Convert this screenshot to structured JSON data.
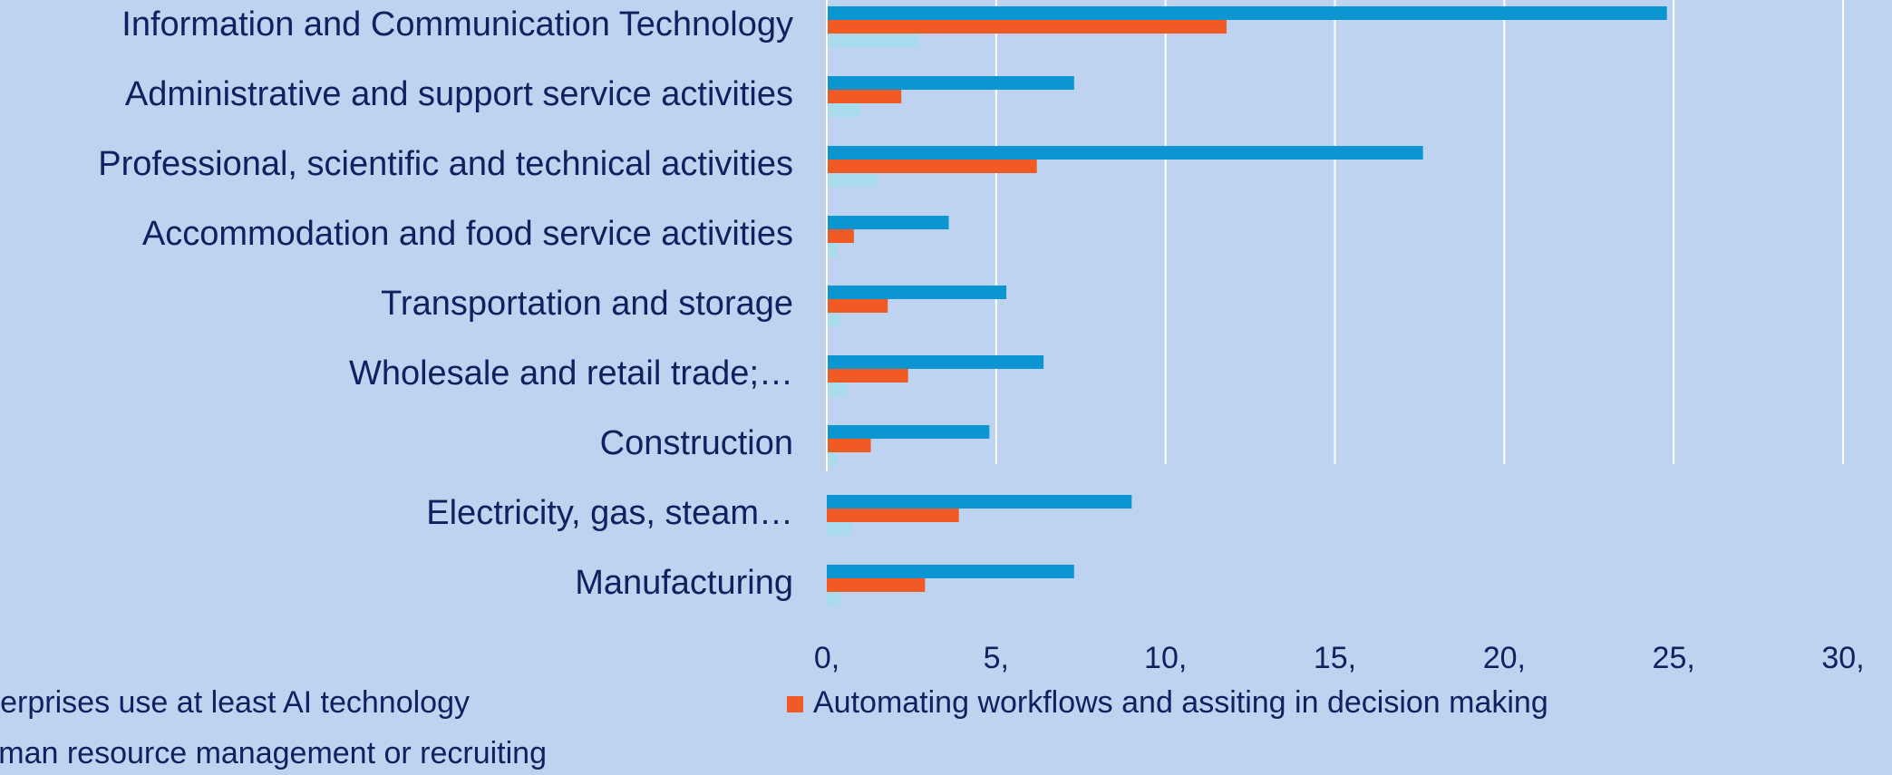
{
  "chart_data": {
    "type": "hbar",
    "categories": [
      "Information and Communication Technology",
      "Administrative and support service activities",
      "Professional, scientific and technical activities",
      "Accommodation and food service activities",
      "Transportation and storage",
      "Wholesale and retail trade;…",
      "Construction",
      "Electricity, gas, steam…",
      "Manufacturing"
    ],
    "series": [
      {
        "name": "Enterprises use at least AI technology",
        "color": "#0b96d2",
        "values": [
          24.8,
          7.3,
          17.6,
          3.6,
          5.3,
          6.4,
          4.8,
          9.0,
          7.3
        ]
      },
      {
        "name": "Automating workflows and assiting in decision making",
        "color": "#f15a24",
        "values": [
          11.8,
          2.2,
          6.2,
          0.8,
          1.8,
          2.4,
          1.3,
          3.9,
          2.9
        ]
      },
      {
        "name": "Human resource management or recruiting",
        "color": "#a8dcec",
        "values": [
          2.7,
          1.0,
          1.5,
          0.3,
          0.4,
          0.6,
          0.3,
          0.7,
          0.4
        ]
      }
    ],
    "xlim": [
      0,
      30
    ],
    "xticks": [
      {
        "value": 0,
        "label": "0,"
      },
      {
        "value": 5,
        "label": "5,"
      },
      {
        "value": 10,
        "label": "10,"
      },
      {
        "value": 15,
        "label": "15,"
      },
      {
        "value": 20,
        "label": "20,"
      },
      {
        "value": 25,
        "label": "25,"
      },
      {
        "value": 30,
        "label": "30,"
      }
    ],
    "grid": true
  }
}
